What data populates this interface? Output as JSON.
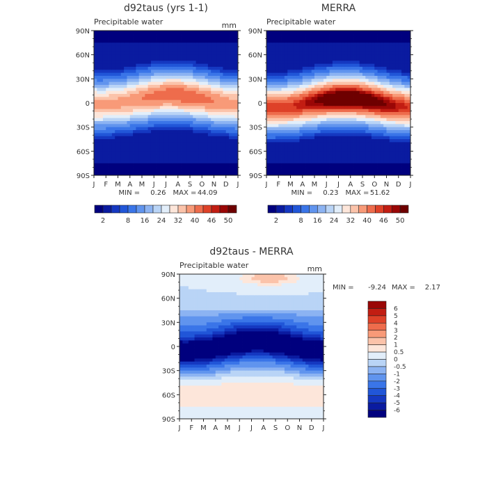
{
  "chart_data": [
    {
      "type": "heatmap",
      "title": "d92taus (yrs 1-1)",
      "subtitle": "Precipitable water",
      "units": "mm",
      "x_ticks": [
        "J",
        "F",
        "M",
        "A",
        "M",
        "J",
        "J",
        "A",
        "S",
        "O",
        "N",
        "D",
        "J"
      ],
      "y_ticks": [
        "90N",
        "60N",
        "30N",
        "0",
        "30S",
        "60S",
        "90S"
      ],
      "y_values": [
        90,
        60,
        30,
        0,
        -30,
        -60,
        -90
      ],
      "stats": {
        "min_label": "MIN =",
        "min": "0.26",
        "max_label": "MAX =",
        "max": "44.09"
      },
      "colorbar_labels": [
        "2",
        "8",
        "16",
        "24",
        "32",
        "40",
        "46",
        "50"
      ],
      "colorbar_levels": [
        2,
        4,
        6,
        8,
        12,
        16,
        20,
        24,
        28,
        32,
        36,
        40,
        44,
        46,
        48,
        50
      ],
      "colors": [
        "#00007e",
        "#0a1ba0",
        "#1538c1",
        "#2156d8",
        "#3a75e8",
        "#6094ee",
        "#8cb3f2",
        "#b9d4f6",
        "#e2eefa",
        "#fde6da",
        "#fbc3aa",
        "#f89a78",
        "#ee6c4c",
        "#de4128",
        "#c21d12",
        "#9a0706",
        "#6e0000"
      ],
      "field": {
        "peak": 40,
        "amp": 3,
        "shift": 4,
        "band": 20
      }
    },
    {
      "type": "heatmap",
      "title": "MERRA",
      "subtitle": "Precipitable water",
      "units": "",
      "x_ticks": [
        "J",
        "F",
        "M",
        "A",
        "M",
        "J",
        "J",
        "A",
        "S",
        "O",
        "N",
        "D",
        "J"
      ],
      "y_ticks": [
        "90N",
        "60N",
        "30N",
        "0",
        "30S",
        "60S",
        "90S"
      ],
      "y_values": [
        90,
        60,
        30,
        0,
        -30,
        -60,
        -90
      ],
      "stats": {
        "min_label": "MIN =",
        "min": "0.23",
        "max_label": "MAX =",
        "max": "51.62"
      },
      "colorbar_labels": [
        "2",
        "8",
        "16",
        "24",
        "32",
        "40",
        "46",
        "50"
      ],
      "colorbar_levels": [
        2,
        4,
        6,
        8,
        12,
        16,
        20,
        24,
        28,
        32,
        36,
        40,
        44,
        46,
        48,
        50
      ],
      "colors": [
        "#00007e",
        "#0a1ba0",
        "#1538c1",
        "#2156d8",
        "#3a75e8",
        "#6094ee",
        "#8cb3f2",
        "#b9d4f6",
        "#e2eefa",
        "#fde6da",
        "#fbc3aa",
        "#f89a78",
        "#ee6c4c",
        "#de4128",
        "#c21d12",
        "#9a0706",
        "#6e0000"
      ],
      "field": {
        "peak": 50,
        "amp": 5,
        "shift": 0,
        "band": 20
      }
    },
    {
      "type": "heatmap",
      "title": "d92taus - MERRA",
      "subtitle": "Precipitable water",
      "units": "mm",
      "x_ticks": [
        "J",
        "F",
        "M",
        "A",
        "M",
        "J",
        "J",
        "A",
        "S",
        "O",
        "N",
        "D",
        "J"
      ],
      "y_ticks": [
        "90N",
        "60N",
        "30N",
        "0",
        "30S",
        "60S",
        "90S"
      ],
      "y_values": [
        90,
        60,
        30,
        0,
        -30,
        -60,
        -90
      ],
      "stats": {
        "min_label": "MIN =",
        "min": "-9.24",
        "max_label": "MAX =",
        "max": "2.17"
      },
      "colorbar_labels": [
        "6",
        "5",
        "4",
        "3",
        "2",
        "1",
        "0.5",
        "0",
        "-0.5",
        "-1",
        "-2",
        "-3",
        "-4",
        "-5",
        "-6"
      ],
      "colorbar_levels": [
        -6,
        -5,
        -4,
        -3,
        -2,
        -1,
        -0.5,
        0,
        0.5,
        1,
        2,
        3,
        4,
        5,
        6
      ],
      "colors": [
        "#00007e",
        "#0a1ba0",
        "#1538c1",
        "#2156d8",
        "#3a75e8",
        "#6094ee",
        "#8cb3f2",
        "#b9d4f6",
        "#e2eefa",
        "#fde6da",
        "#fbc3aa",
        "#f89a78",
        "#ee6c4c",
        "#de4128",
        "#c21d12",
        "#9a0706"
      ],
      "field": {
        "diff": true
      }
    }
  ]
}
